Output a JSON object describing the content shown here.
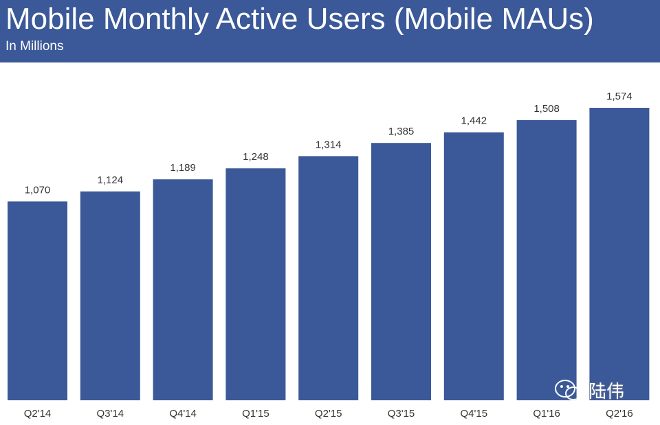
{
  "header": {
    "title": "Mobile Monthly Active Users (Mobile MAUs)",
    "subtitle": "In Millions"
  },
  "watermark": {
    "text": "陆伟"
  },
  "colors": {
    "bar": "#3b5998",
    "header_bg": "#3b5998",
    "label": "#333333"
  },
  "chart_data": {
    "type": "bar",
    "title": "Mobile Monthly Active Users (Mobile MAUs)",
    "subtitle": "In Millions",
    "xlabel": "",
    "ylabel": "",
    "ylim": [
      0,
      1574
    ],
    "categories": [
      "Q2'14",
      "Q3'14",
      "Q4'14",
      "Q1'15",
      "Q2'15",
      "Q3'15",
      "Q4'15",
      "Q1'16",
      "Q2'16"
    ],
    "values": [
      1070,
      1124,
      1189,
      1248,
      1314,
      1385,
      1442,
      1508,
      1574
    ],
    "value_labels": [
      "1,070",
      "1,124",
      "1,189",
      "1,248",
      "1,314",
      "1,385",
      "1,442",
      "1,508",
      "1,574"
    ]
  }
}
